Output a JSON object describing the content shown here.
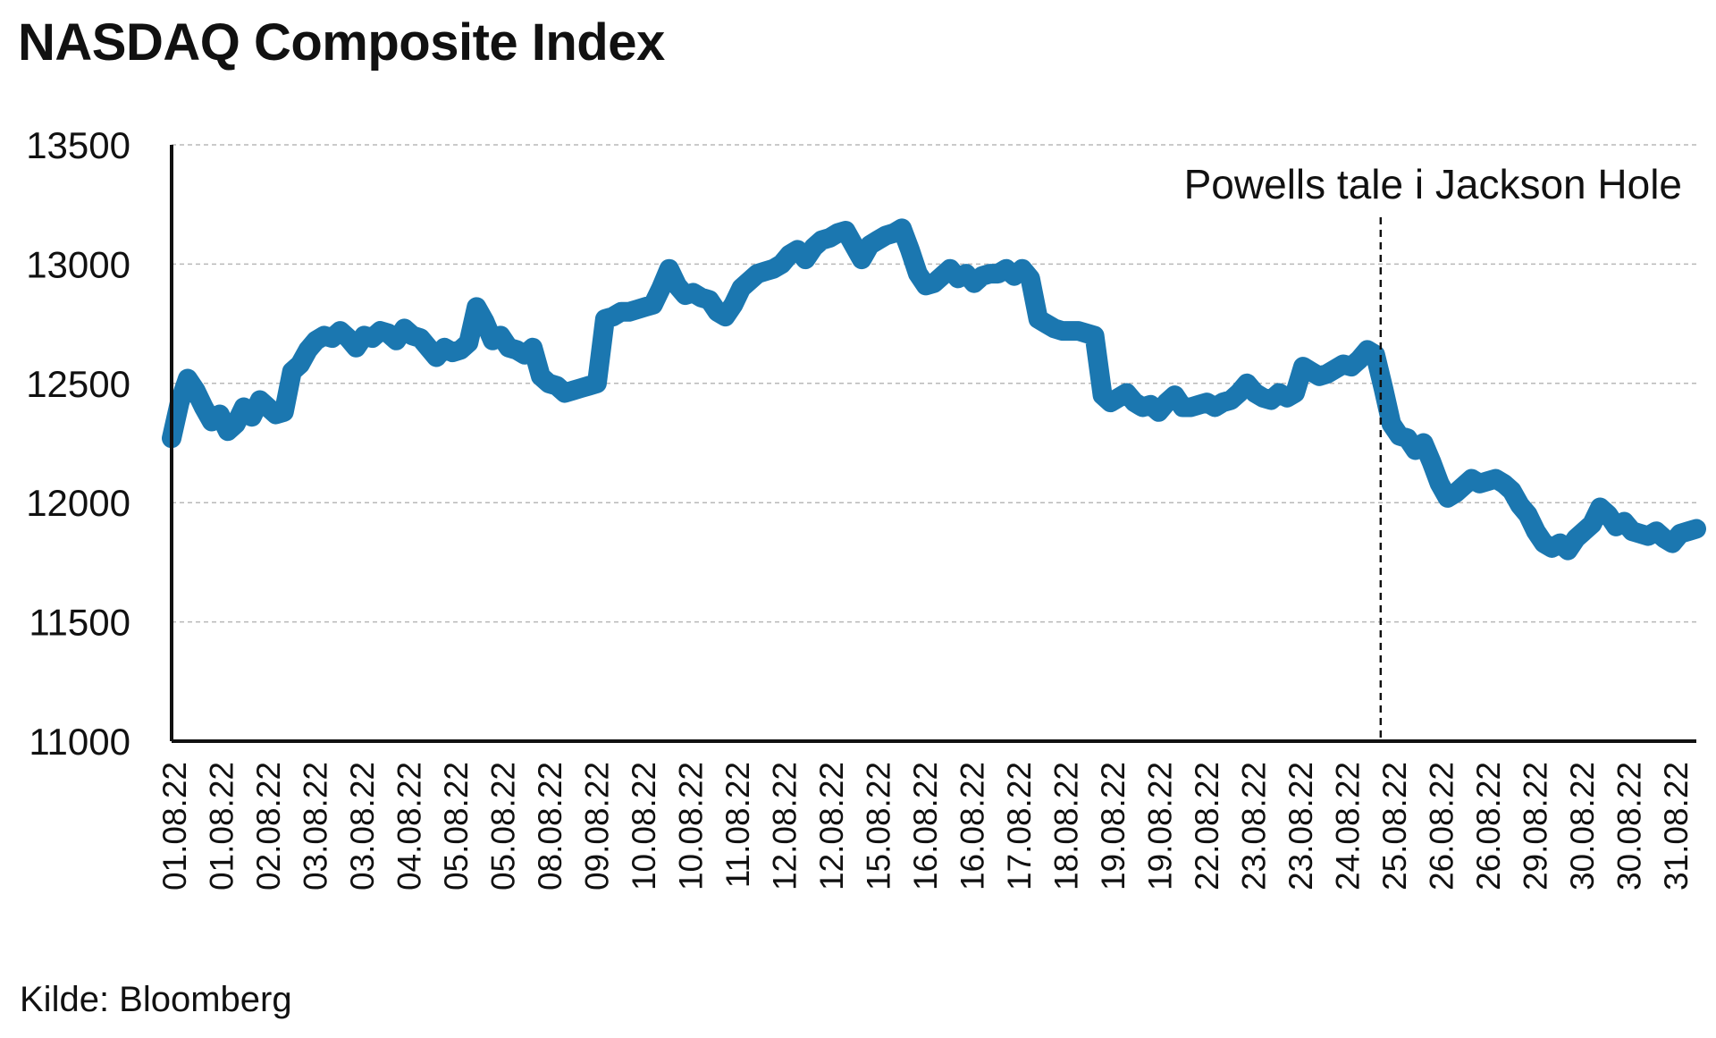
{
  "chart_data": {
    "type": "line",
    "title": "NASDAQ Composite Index",
    "source": "Kilde: Bloomberg",
    "ylim": [
      11000,
      13500
    ],
    "yticks": [
      11000,
      11500,
      12000,
      12500,
      13000,
      13500
    ],
    "ytick_labels": [
      "11000",
      "11500",
      "12000",
      "12500",
      "13000",
      "13500"
    ],
    "grid": true,
    "x_tick_labels": [
      "01.08.22",
      "01.08.22",
      "02.08.22",
      "03.08.22",
      "03.08.22",
      "04.08.22",
      "05.08.22",
      "05.08.22",
      "08.08.22",
      "09.08.22",
      "10.08.22",
      "10.08.22",
      "11.08.22",
      "12.08.22",
      "12.08.22",
      "15.08.22",
      "16.08.22",
      "16.08.22",
      "17.08.22",
      "18.08.22",
      "19.08.22",
      "19.08.22",
      "22.08.22",
      "23.08.22",
      "23.08.22",
      "24.08.22",
      "25.08.22",
      "26.08.22",
      "26.08.22",
      "29.08.22",
      "30.08.22",
      "30.08.22",
      "31.08.22"
    ],
    "series": [
      {
        "color": "#1b77b0",
        "points": [
          [
            0.0,
            12270
          ],
          [
            0.3,
            12420
          ],
          [
            0.6,
            12520
          ],
          [
            0.9,
            12470
          ],
          [
            1.2,
            12400
          ],
          [
            1.5,
            12340
          ],
          [
            1.8,
            12370
          ],
          [
            2.1,
            12300
          ],
          [
            2.4,
            12330
          ],
          [
            2.7,
            12400
          ],
          [
            3.0,
            12360
          ],
          [
            3.3,
            12430
          ],
          [
            3.6,
            12400
          ],
          [
            3.9,
            12370
          ],
          [
            4.2,
            12380
          ],
          [
            4.5,
            12550
          ],
          [
            4.8,
            12580
          ],
          [
            5.1,
            12640
          ],
          [
            5.4,
            12680
          ],
          [
            5.7,
            12700
          ],
          [
            6.0,
            12690
          ],
          [
            6.3,
            12720
          ],
          [
            6.6,
            12690
          ],
          [
            6.9,
            12650
          ],
          [
            7.2,
            12700
          ],
          [
            7.5,
            12690
          ],
          [
            7.8,
            12720
          ],
          [
            8.1,
            12710
          ],
          [
            8.4,
            12680
          ],
          [
            8.7,
            12730
          ],
          [
            9.0,
            12700
          ],
          [
            9.3,
            12690
          ],
          [
            9.6,
            12650
          ],
          [
            9.9,
            12610
          ],
          [
            10.2,
            12650
          ],
          [
            10.5,
            12630
          ],
          [
            10.8,
            12640
          ],
          [
            11.1,
            12670
          ],
          [
            11.4,
            12820
          ],
          [
            11.7,
            12760
          ],
          [
            12.0,
            12680
          ],
          [
            12.3,
            12700
          ],
          [
            12.6,
            12650
          ],
          [
            12.9,
            12640
          ],
          [
            13.2,
            12620
          ],
          [
            13.5,
            12650
          ],
          [
            13.8,
            12530
          ],
          [
            14.1,
            12500
          ],
          [
            14.4,
            12490
          ],
          [
            14.7,
            12460
          ],
          [
            15.0,
            12470
          ],
          [
            15.3,
            12480
          ],
          [
            15.6,
            12490
          ],
          [
            15.9,
            12500
          ],
          [
            16.2,
            12770
          ],
          [
            16.5,
            12780
          ],
          [
            16.8,
            12800
          ],
          [
            17.1,
            12800
          ],
          [
            17.4,
            12810
          ],
          [
            17.7,
            12820
          ],
          [
            18.0,
            12830
          ],
          [
            18.3,
            12900
          ],
          [
            18.6,
            12980
          ],
          [
            18.9,
            12910
          ],
          [
            19.2,
            12870
          ],
          [
            19.5,
            12880
          ],
          [
            19.8,
            12860
          ],
          [
            20.1,
            12850
          ],
          [
            20.4,
            12800
          ],
          [
            20.7,
            12780
          ],
          [
            21.0,
            12830
          ],
          [
            21.3,
            12900
          ],
          [
            21.6,
            12930
          ],
          [
            21.9,
            12960
          ],
          [
            22.2,
            12970
          ],
          [
            22.5,
            12980
          ],
          [
            22.8,
            13000
          ],
          [
            23.1,
            13040
          ],
          [
            23.4,
            13060
          ],
          [
            23.7,
            13020
          ],
          [
            24.0,
            13070
          ],
          [
            24.3,
            13100
          ],
          [
            24.6,
            13110
          ],
          [
            24.9,
            13130
          ],
          [
            25.2,
            13140
          ],
          [
            25.5,
            13080
          ],
          [
            25.8,
            13020
          ],
          [
            26.1,
            13080
          ],
          [
            26.4,
            13100
          ],
          [
            26.7,
            13120
          ],
          [
            27.0,
            13130
          ],
          [
            27.3,
            13150
          ],
          [
            27.6,
            13060
          ],
          [
            27.9,
            12960
          ],
          [
            28.2,
            12910
          ],
          [
            28.5,
            12920
          ],
          [
            28.8,
            12950
          ],
          [
            29.1,
            12980
          ],
          [
            29.4,
            12940
          ],
          [
            29.7,
            12960
          ],
          [
            30.0,
            12920
          ],
          [
            30.3,
            12950
          ],
          [
            30.6,
            12960
          ],
          [
            30.9,
            12960
          ],
          [
            31.2,
            12980
          ],
          [
            31.5,
            12950
          ],
          [
            31.8,
            12980
          ],
          [
            32.1,
            12940
          ],
          [
            32.4,
            12770
          ],
          [
            32.7,
            12750
          ],
          [
            33.0,
            12730
          ],
          [
            33.3,
            12720
          ],
          [
            33.6,
            12720
          ],
          [
            33.9,
            12720
          ],
          [
            34.2,
            12710
          ],
          [
            34.5,
            12700
          ],
          [
            34.8,
            12450
          ],
          [
            35.1,
            12420
          ],
          [
            35.4,
            12440
          ],
          [
            35.7,
            12460
          ],
          [
            36.0,
            12420
          ],
          [
            36.3,
            12400
          ],
          [
            36.6,
            12410
          ],
          [
            36.9,
            12380
          ],
          [
            37.2,
            12420
          ],
          [
            37.5,
            12450
          ],
          [
            37.8,
            12400
          ],
          [
            38.1,
            12400
          ],
          [
            38.4,
            12410
          ],
          [
            38.7,
            12420
          ],
          [
            39.0,
            12400
          ],
          [
            39.3,
            12420
          ],
          [
            39.6,
            12430
          ],
          [
            39.9,
            12460
          ],
          [
            40.2,
            12500
          ],
          [
            40.5,
            12460
          ],
          [
            40.8,
            12440
          ],
          [
            41.1,
            12430
          ],
          [
            41.4,
            12460
          ],
          [
            41.7,
            12440
          ],
          [
            42.0,
            12460
          ],
          [
            42.3,
            12570
          ],
          [
            42.6,
            12550
          ],
          [
            42.9,
            12530
          ],
          [
            43.2,
            12540
          ],
          [
            43.5,
            12560
          ],
          [
            43.8,
            12580
          ],
          [
            44.1,
            12570
          ],
          [
            44.4,
            12600
          ],
          [
            44.7,
            12640
          ],
          [
            45.0,
            12620
          ],
          [
            45.3,
            12480
          ],
          [
            45.6,
            12330
          ],
          [
            45.9,
            12280
          ],
          [
            46.2,
            12270
          ],
          [
            46.5,
            12220
          ],
          [
            46.8,
            12250
          ],
          [
            47.1,
            12170
          ],
          [
            47.4,
            12080
          ],
          [
            47.7,
            12020
          ],
          [
            48.0,
            12040
          ],
          [
            48.3,
            12070
          ],
          [
            48.6,
            12100
          ],
          [
            48.9,
            12080
          ],
          [
            49.2,
            12090
          ],
          [
            49.5,
            12100
          ],
          [
            49.8,
            12080
          ],
          [
            50.1,
            12050
          ],
          [
            50.4,
            11990
          ],
          [
            50.7,
            11950
          ],
          [
            51.0,
            11880
          ],
          [
            51.3,
            11830
          ],
          [
            51.6,
            11810
          ],
          [
            51.9,
            11830
          ],
          [
            52.2,
            11800
          ],
          [
            52.5,
            11850
          ],
          [
            52.8,
            11880
          ],
          [
            53.1,
            11910
          ],
          [
            53.4,
            11980
          ],
          [
            53.7,
            11950
          ],
          [
            54.0,
            11900
          ],
          [
            54.3,
            11920
          ],
          [
            54.6,
            11880
          ],
          [
            54.9,
            11870
          ],
          [
            55.2,
            11860
          ],
          [
            55.5,
            11880
          ],
          [
            55.8,
            11850
          ],
          [
            56.1,
            11830
          ],
          [
            56.4,
            11870
          ],
          [
            56.7,
            11880
          ],
          [
            57.0,
            11890
          ]
        ]
      }
    ],
    "annotations": [
      {
        "text": "Powells tale i Jackson Hole",
        "x": 45.2,
        "style": "dashed-vertical-line"
      }
    ]
  }
}
